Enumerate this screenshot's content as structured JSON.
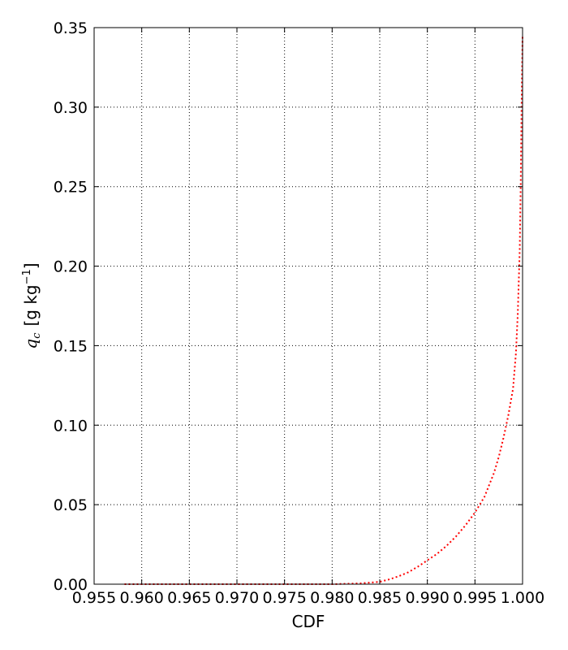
{
  "chart_data": {
    "type": "line",
    "title": "",
    "xlabel": "CDF",
    "ylabel_symbol": "q",
    "ylabel_subscript": "c",
    "ylabel_units": "[g kg",
    "ylabel_superscript": "−1",
    "ylabel_close": "]",
    "xlim": [
      0.955,
      1.0
    ],
    "ylim": [
      0.0,
      0.35
    ],
    "x_ticks": [
      0.955,
      0.96,
      0.965,
      0.97,
      0.975,
      0.98,
      0.985,
      0.99,
      0.995,
      1.0
    ],
    "x_tick_labels": [
      "0.955",
      "0.960",
      "0.965",
      "0.970",
      "0.975",
      "0.980",
      "0.985",
      "0.990",
      "0.995",
      "1.000"
    ],
    "y_ticks": [
      0.0,
      0.05,
      0.1,
      0.15,
      0.2,
      0.25,
      0.3,
      0.35
    ],
    "y_tick_labels": [
      "0.00",
      "0.05",
      "0.10",
      "0.15",
      "0.20",
      "0.25",
      "0.30",
      "0.35"
    ],
    "grid": true,
    "series": [
      {
        "color": "#ff0000",
        "linestyle": "dotted",
        "x": [
          0.9582,
          0.96,
          0.965,
          0.97,
          0.975,
          0.98,
          0.983,
          0.985,
          0.986,
          0.987,
          0.988,
          0.989,
          0.99,
          0.991,
          0.992,
          0.993,
          0.994,
          0.995,
          0.996,
          0.997,
          0.9975,
          0.998,
          0.9985,
          0.999,
          0.9993,
          0.9995,
          0.9997,
          0.9998,
          0.9999,
          1.0
        ],
        "y": [
          0.0,
          0.0,
          0.0,
          0.0,
          0.0,
          0.0,
          0.0005,
          0.0015,
          0.003,
          0.005,
          0.0075,
          0.011,
          0.015,
          0.019,
          0.024,
          0.03,
          0.037,
          0.045,
          0.055,
          0.07,
          0.08,
          0.092,
          0.106,
          0.123,
          0.145,
          0.17,
          0.21,
          0.25,
          0.3,
          0.345
        ]
      }
    ]
  }
}
